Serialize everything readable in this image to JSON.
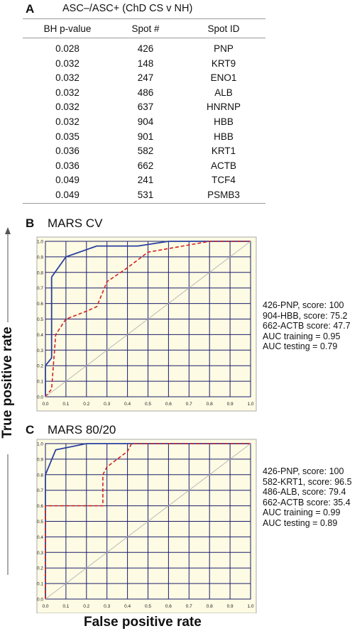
{
  "panel_a": {
    "letter": "A",
    "title": "ASC–/ASC+ (ChD CS v NH)",
    "headers": [
      "BH p-value",
      "Spot #",
      "Spot ID"
    ],
    "rows": [
      [
        "0.028",
        "426",
        "PNP"
      ],
      [
        "0.032",
        "148",
        "KRT9"
      ],
      [
        "0.032",
        "247",
        "ENO1"
      ],
      [
        "0.032",
        "486",
        "ALB"
      ],
      [
        "0.032",
        "637",
        "HNRNP"
      ],
      [
        "0.032",
        "904",
        "HBB"
      ],
      [
        "0.035",
        "901",
        "HBB"
      ],
      [
        "0.036",
        "582",
        "KRT1"
      ],
      [
        "0.036",
        "662",
        "ACTB"
      ],
      [
        "0.049",
        "241",
        "TCF4"
      ],
      [
        "0.049",
        "531",
        "PSMB3"
      ]
    ]
  },
  "panel_b": {
    "letter": "B",
    "annotations": [
      "426-PNP, score: 100",
      "904-HBB, score: 75.2",
      "662-ACTB score: 47.7",
      "AUC training = 0.95",
      "AUC testing = 0.79"
    ]
  },
  "panel_c": {
    "letter": "C",
    "annotations": [
      "426-PNP, score: 100",
      "582-KRT1, score: 96.5",
      "486-ALB, score: 79.4",
      "662-ACTB score: 35.4",
      "AUC training = 0.99",
      "AUC testing = 0.89"
    ]
  },
  "axes": {
    "ylabel": "True positive rate",
    "xlabel": "False positive rate"
  },
  "colors": {
    "plot_bg": "#fdfbe3",
    "grid": "#1c1c6e",
    "training": "#2a3fa0",
    "testing": "#d42020",
    "diagonal": "#b9b9b9"
  },
  "chart_data": [
    {
      "type": "line",
      "title": "MARS CV",
      "xlabel": "False positive rate",
      "ylabel": "True positive rate",
      "xlim": [
        0,
        1
      ],
      "ylim": [
        0,
        1
      ],
      "ticks": [
        "0.0",
        "0.1",
        "0.2",
        "0.3",
        "0.4",
        "0.5",
        "0.6",
        "0.7",
        "0.8",
        "0.9",
        "1.0"
      ],
      "grid": true,
      "series": [
        {
          "style": "solid",
          "x": [
            0,
            0,
            0.03,
            0.03,
            0.1,
            0.25,
            0.45,
            0.6,
            1.0
          ],
          "y": [
            0,
            0.2,
            0.25,
            0.77,
            0.9,
            0.97,
            0.97,
            1.0,
            1.0
          ]
        },
        {
          "style": "dashed",
          "x": [
            0,
            0.03,
            0.05,
            0.1,
            0.2,
            0.25,
            0.3,
            0.4,
            0.5,
            0.8,
            1.0
          ],
          "y": [
            0,
            0.05,
            0.4,
            0.5,
            0.55,
            0.58,
            0.74,
            0.83,
            0.93,
            1.0,
            1.0
          ]
        },
        {
          "style": "diagonal",
          "x": [
            0,
            1
          ],
          "y": [
            0,
            1
          ]
        }
      ]
    },
    {
      "type": "line",
      "title": "MARS 80/20",
      "xlabel": "False positive rate",
      "ylabel": "True positive rate",
      "xlim": [
        0,
        1
      ],
      "ylim": [
        0,
        1
      ],
      "ticks": [
        "0.0",
        "0.1",
        "0.2",
        "0.3",
        "0.4",
        "0.5",
        "0.6",
        "0.7",
        "0.8",
        "0.9",
        "1.0"
      ],
      "grid": true,
      "series": [
        {
          "style": "solid",
          "x": [
            0,
            0,
            0.05,
            0.2,
            0.25,
            1.0
          ],
          "y": [
            0,
            0.8,
            0.96,
            1.0,
            1.0,
            1.0
          ]
        },
        {
          "style": "dashed",
          "x": [
            0,
            0,
            0.28,
            0.28,
            0.3,
            0.4,
            0.42,
            1.0
          ],
          "y": [
            0,
            0.6,
            0.6,
            0.8,
            0.85,
            0.95,
            1.0,
            1.0
          ]
        },
        {
          "style": "diagonal",
          "x": [
            0,
            1
          ],
          "y": [
            0,
            1
          ]
        }
      ]
    }
  ]
}
